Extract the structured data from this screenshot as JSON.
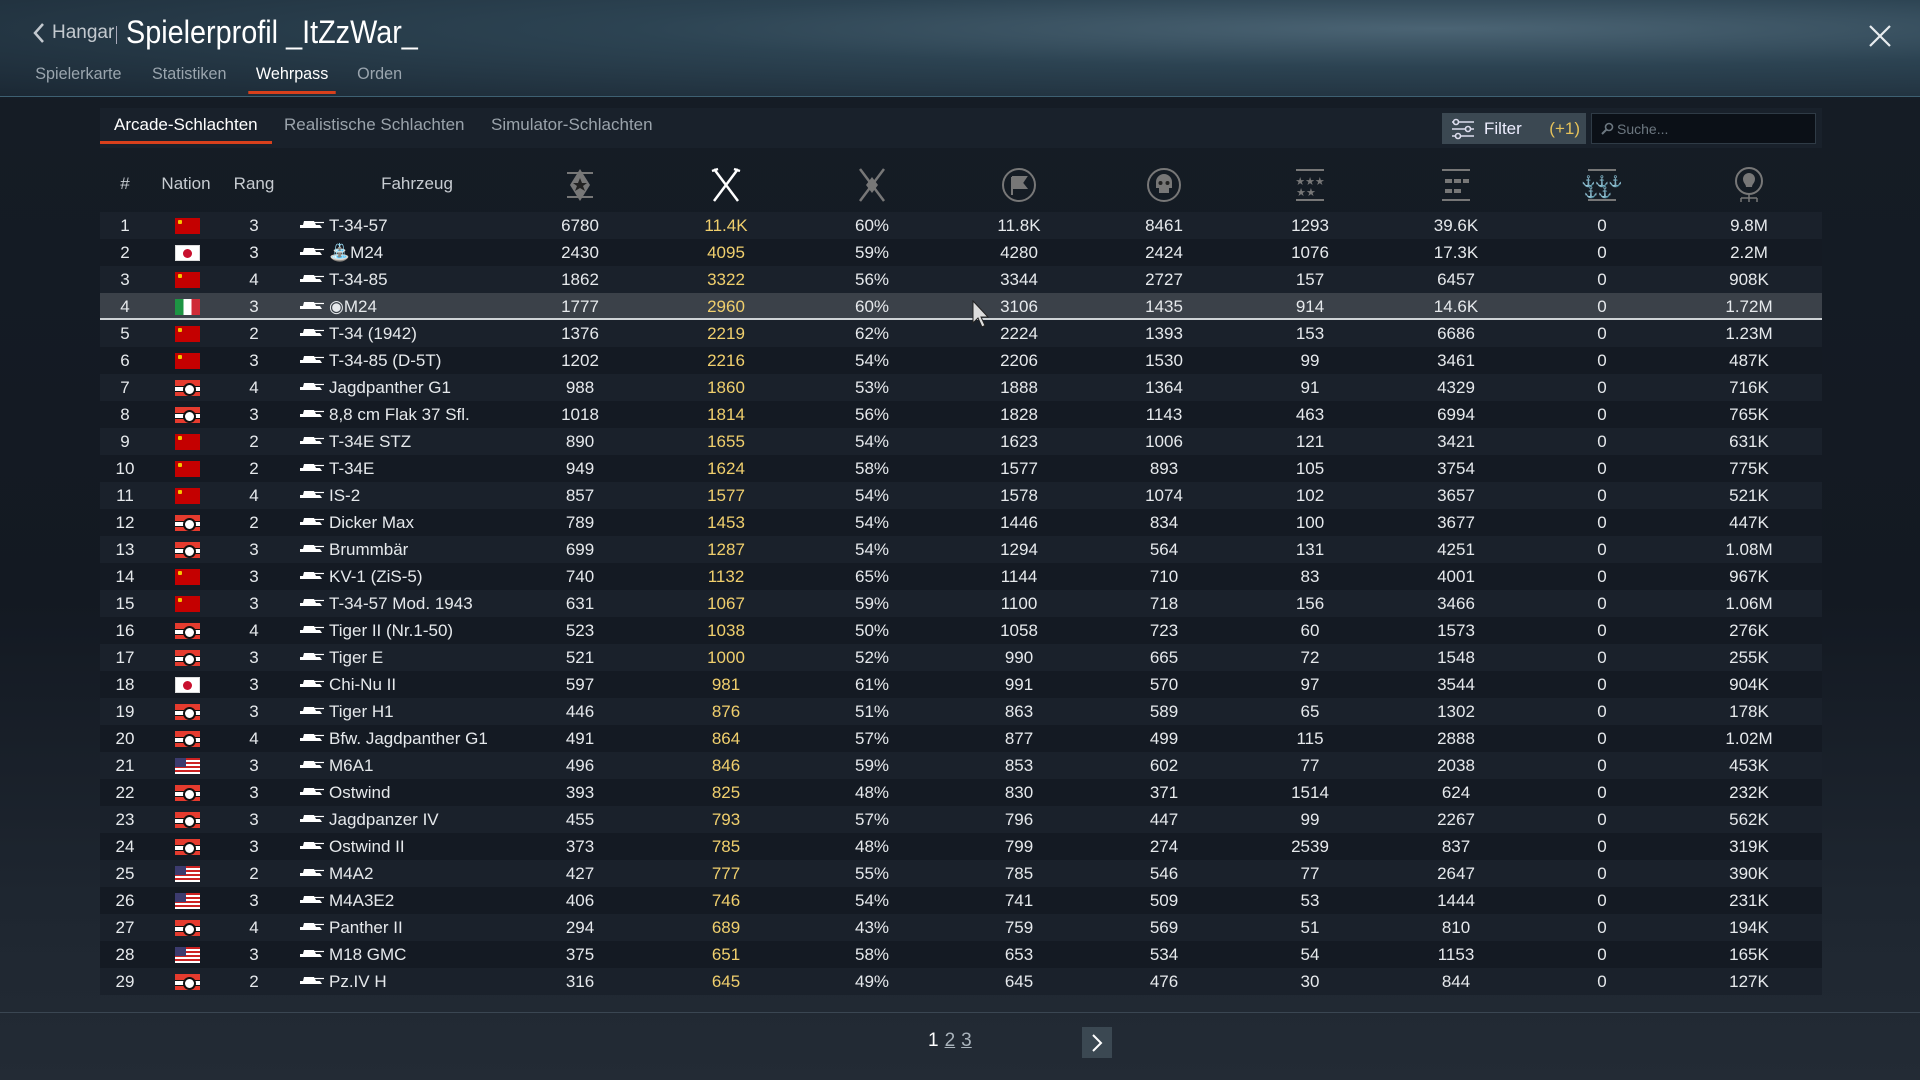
{
  "header": {
    "back_label": "Hangar",
    "title": "Spielerprofil _ItZzWar_"
  },
  "tabs": [
    {
      "label": "Spielerkarte"
    },
    {
      "label": "Statistiken"
    },
    {
      "label": "Wehrpass",
      "active": true
    },
    {
      "label": "Orden"
    }
  ],
  "mode_tabs": [
    {
      "label": "Arcade-Schlachten",
      "active": true
    },
    {
      "label": "Realistische Schlachten"
    },
    {
      "label": "Simulator-Schlachten"
    }
  ],
  "filter": {
    "label": "Filter",
    "count": "(+1)"
  },
  "search": {
    "placeholder": "Suche..."
  },
  "colors": {
    "accent": "#d8401c",
    "highlight": "#f0cf6d"
  },
  "columns": {
    "number": "#",
    "nation": "Nation",
    "rank": "Rang",
    "vehicle": "Fahrzeug",
    "icons": [
      "battles-icon",
      "sorted-missions-icon",
      "winrate-icon",
      "respawns-icon",
      "deaths-icon",
      "air-kills-icon",
      "ground-kills-icon",
      "naval-kills-icon",
      "research-points-icon"
    ]
  },
  "rows": [
    [
      "1",
      "ussr",
      "3",
      "T-34-57",
      "6780",
      "11.4K",
      "60%",
      "11.8K",
      "8461",
      "1293",
      "39.6K",
      "0",
      "9.8M"
    ],
    [
      "2",
      "japan",
      "3",
      "⛲M24",
      "2430",
      "4095",
      "59%",
      "4280",
      "2424",
      "1076",
      "17.3K",
      "0",
      "2.2M"
    ],
    [
      "3",
      "ussr",
      "4",
      "T-34-85",
      "1862",
      "3322",
      "56%",
      "3344",
      "2727",
      "157",
      "6457",
      "0",
      "908K"
    ],
    [
      "4",
      "italy",
      "3",
      "◉M24",
      "1777",
      "2960",
      "60%",
      "3106",
      "1435",
      "914",
      "14.6K",
      "0",
      "1.72M"
    ],
    [
      "5",
      "ussr",
      "2",
      "T-34 (1942)",
      "1376",
      "2219",
      "62%",
      "2224",
      "1393",
      "153",
      "6686",
      "0",
      "1.23M"
    ],
    [
      "6",
      "ussr",
      "3",
      "T-34-85 (D-5T)",
      "1202",
      "2216",
      "54%",
      "2206",
      "1530",
      "99",
      "3461",
      "0",
      "487K"
    ],
    [
      "7",
      "germany",
      "4",
      "Jagdpanther G1",
      "988",
      "1860",
      "53%",
      "1888",
      "1364",
      "91",
      "4329",
      "0",
      "716K"
    ],
    [
      "8",
      "germany",
      "3",
      "8,8 cm Flak 37 Sfl.",
      "1018",
      "1814",
      "56%",
      "1828",
      "1143",
      "463",
      "6994",
      "0",
      "765K"
    ],
    [
      "9",
      "ussr",
      "2",
      "T-34E STZ",
      "890",
      "1655",
      "54%",
      "1623",
      "1006",
      "121",
      "3421",
      "0",
      "631K"
    ],
    [
      "10",
      "ussr",
      "2",
      "T-34E",
      "949",
      "1624",
      "58%",
      "1577",
      "893",
      "105",
      "3754",
      "0",
      "775K"
    ],
    [
      "11",
      "ussr",
      "4",
      "IS-2",
      "857",
      "1577",
      "54%",
      "1578",
      "1074",
      "102",
      "3657",
      "0",
      "521K"
    ],
    [
      "12",
      "germany",
      "2",
      "Dicker Max",
      "789",
      "1453",
      "54%",
      "1446",
      "834",
      "100",
      "3677",
      "0",
      "447K"
    ],
    [
      "13",
      "germany",
      "3",
      "Brummbär",
      "699",
      "1287",
      "54%",
      "1294",
      "564",
      "131",
      "4251",
      "0",
      "1.08M"
    ],
    [
      "14",
      "ussr",
      "3",
      "KV-1 (ZiS-5)",
      "740",
      "1132",
      "65%",
      "1144",
      "710",
      "83",
      "4001",
      "0",
      "967K"
    ],
    [
      "15",
      "ussr",
      "3",
      "T-34-57 Mod. 1943",
      "631",
      "1067",
      "59%",
      "1100",
      "718",
      "156",
      "3466",
      "0",
      "1.06M"
    ],
    [
      "16",
      "germany",
      "4",
      "Tiger II (Nr.1-50)",
      "523",
      "1038",
      "50%",
      "1058",
      "723",
      "60",
      "1573",
      "0",
      "276K"
    ],
    [
      "17",
      "germany",
      "3",
      "Tiger E",
      "521",
      "1000",
      "52%",
      "990",
      "665",
      "72",
      "1548",
      "0",
      "255K"
    ],
    [
      "18",
      "japan",
      "3",
      "Chi-Nu II",
      "597",
      "981",
      "61%",
      "991",
      "570",
      "97",
      "3544",
      "0",
      "904K"
    ],
    [
      "19",
      "germany",
      "3",
      "Tiger H1",
      "446",
      "876",
      "51%",
      "863",
      "589",
      "65",
      "1302",
      "0",
      "178K"
    ],
    [
      "20",
      "germany",
      "4",
      "Bfw. Jagdpanther G1",
      "491",
      "864",
      "57%",
      "877",
      "499",
      "115",
      "2888",
      "0",
      "1.02M"
    ],
    [
      "21",
      "usa",
      "3",
      "M6A1",
      "496",
      "846",
      "59%",
      "853",
      "602",
      "77",
      "2038",
      "0",
      "453K"
    ],
    [
      "22",
      "germany",
      "3",
      "Ostwind",
      "393",
      "825",
      "48%",
      "830",
      "371",
      "1514",
      "624",
      "0",
      "232K"
    ],
    [
      "23",
      "germany",
      "3",
      "Jagdpanzer IV",
      "455",
      "793",
      "57%",
      "796",
      "447",
      "99",
      "2267",
      "0",
      "562K"
    ],
    [
      "24",
      "germany",
      "3",
      "Ostwind II",
      "373",
      "785",
      "48%",
      "799",
      "274",
      "2539",
      "837",
      "0",
      "319K"
    ],
    [
      "25",
      "usa",
      "2",
      "M4A2",
      "427",
      "777",
      "55%",
      "785",
      "546",
      "77",
      "2647",
      "0",
      "390K"
    ],
    [
      "26",
      "usa",
      "3",
      "M4A3E2",
      "406",
      "746",
      "54%",
      "741",
      "509",
      "53",
      "1444",
      "0",
      "231K"
    ],
    [
      "27",
      "germany",
      "4",
      "Panther II",
      "294",
      "689",
      "43%",
      "759",
      "569",
      "51",
      "810",
      "0",
      "194K"
    ],
    [
      "28",
      "usa",
      "3",
      "M18 GMC",
      "375",
      "651",
      "58%",
      "653",
      "534",
      "54",
      "1153",
      "0",
      "165K"
    ],
    [
      "29",
      "germany",
      "2",
      "Pz.IV H",
      "316",
      "645",
      "49%",
      "645",
      "476",
      "30",
      "844",
      "0",
      "127K"
    ]
  ],
  "selected_row": "4",
  "pagination": {
    "pages": [
      "1",
      "2",
      "3"
    ],
    "current": "1"
  }
}
